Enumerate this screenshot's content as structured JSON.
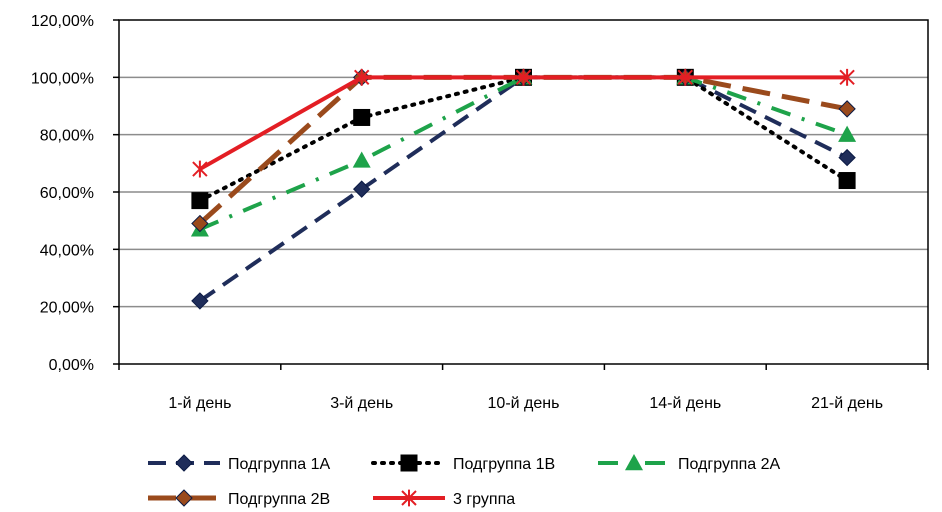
{
  "chart_data": {
    "type": "line",
    "title": "",
    "xlabel": "",
    "ylabel": "",
    "categories": [
      "1-й день",
      "3-й день",
      "10-й день",
      "14-й день",
      "21-й день"
    ],
    "ylim": [
      0,
      120
    ],
    "yticks": [
      0,
      20,
      40,
      60,
      80,
      100,
      120
    ],
    "ytick_labels": [
      "0,00%",
      "20,00%",
      "40,00%",
      "60,00%",
      "80,00%",
      "100,00%",
      "120,00%"
    ],
    "grid": true,
    "legend_position": "bottom",
    "series": [
      {
        "name": "Подгруппа 1А",
        "values": [
          22,
          61,
          100,
          100,
          72
        ],
        "color": "#1f2d5a",
        "marker": "diamond",
        "dash": "dash"
      },
      {
        "name": "Подгруппа 1В",
        "values": [
          57,
          86,
          100,
          100,
          64
        ],
        "color": "#000000",
        "marker": "square",
        "dash": "dot"
      },
      {
        "name": "Подгруппа 2А",
        "values": [
          47,
          71,
          100,
          100,
          80
        ],
        "color": "#1ea34a",
        "marker": "triangle",
        "dash": "dashdot"
      },
      {
        "name": "Подгруппа 2В",
        "values": [
          49,
          100,
          100,
          100,
          89
        ],
        "color": "#9a4a1c",
        "marker": "diamond",
        "dash": "longdash"
      },
      {
        "name": "3 группа",
        "values": [
          68,
          100,
          100,
          100,
          100
        ],
        "color": "#e31e24",
        "marker": "star",
        "dash": "solid"
      }
    ]
  }
}
